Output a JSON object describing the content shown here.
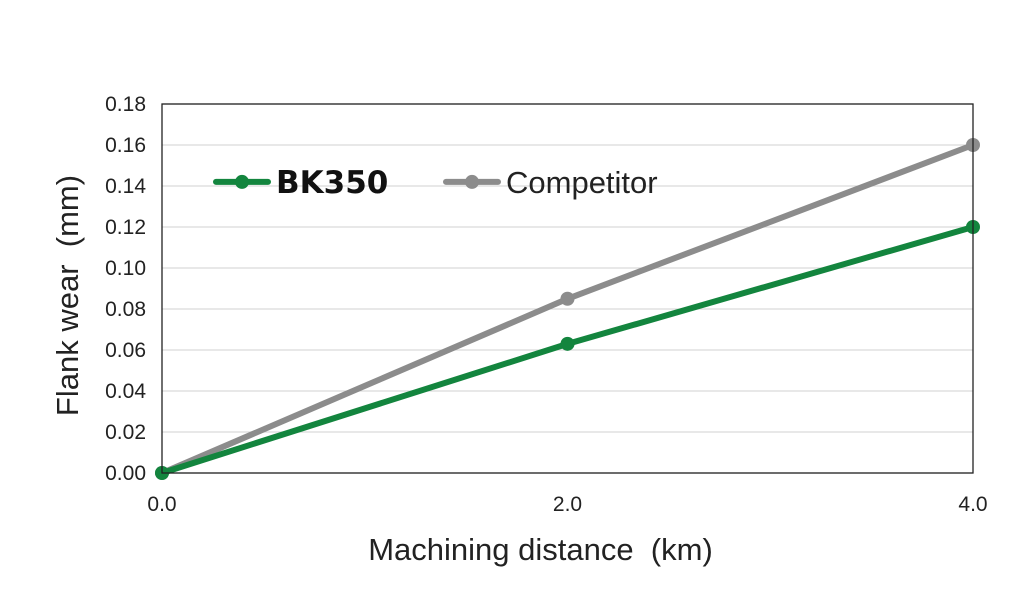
{
  "chart_data": {
    "type": "line",
    "title": "",
    "xlabel": "Machining distance  (km)",
    "ylabel": "Flank wear  (mm)",
    "x": [
      0.0,
      2.0,
      4.0
    ],
    "x_tick_labels": [
      "0.0",
      "2.0",
      "4.0"
    ],
    "xlim": [
      0,
      4
    ],
    "ylim": [
      0,
      0.18
    ],
    "y_ticks": [
      0.0,
      0.02,
      0.04,
      0.06,
      0.08,
      0.1,
      0.12,
      0.14,
      0.16,
      0.18
    ],
    "y_tick_labels": [
      "0.00",
      "0.02",
      "0.04",
      "0.06",
      "0.08",
      "0.10",
      "0.12",
      "0.14",
      "0.16",
      "0.18"
    ],
    "grid": true,
    "legend_position": "top-left, inside plot",
    "series": [
      {
        "name": "BK350",
        "values": [
          0.0,
          0.063,
          0.12
        ],
        "color": "#13853e",
        "legend_bold": true
      },
      {
        "name": "Competitor",
        "values": [
          0.0,
          0.085,
          0.16
        ],
        "color": "#8c8c8c",
        "legend_bold": false
      }
    ]
  }
}
